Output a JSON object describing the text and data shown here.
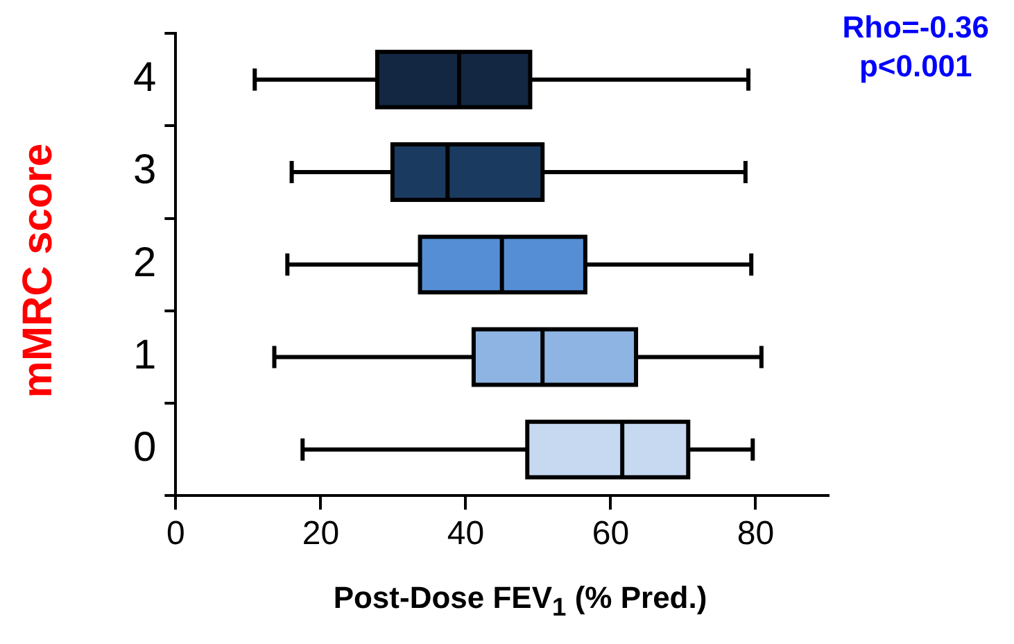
{
  "chart_data": {
    "type": "box",
    "orientation": "horizontal",
    "xlabel": "Post-Dose FEV$_{1}$ (% Pred.)",
    "ylabel": "mMRC score",
    "annotations": [
      "Rho=-0.36",
      "p<0.001"
    ],
    "categories": [
      "4",
      "3",
      "2",
      "1",
      "0"
    ],
    "colors": [
      "#132743",
      "#1b3a60",
      "#558ed5",
      "#8eb4e3",
      "#c6d9f1"
    ],
    "boxes": [
      {
        "low": 10.9,
        "q1": 27.8,
        "median": 39.1,
        "q3": 48.9,
        "high": 79
      },
      {
        "low": 16,
        "q1": 29.9,
        "median": 37.5,
        "q3": 50.6,
        "high": 78.6
      },
      {
        "low": 15.4,
        "q1": 33.7,
        "median": 45,
        "q3": 56.5,
        "high": 79.4
      },
      {
        "low": 13.6,
        "q1": 41.1,
        "median": 50.6,
        "q3": 63.5,
        "high": 80.8
      },
      {
        "low": 17.5,
        "q1": 48.5,
        "median": 61.6,
        "q3": 70.7,
        "high": 79.6
      }
    ],
    "xlim": [
      0,
      90
    ],
    "xticks": [
      0,
      20,
      40,
      60,
      80
    ],
    "grid": false,
    "legend": false
  }
}
